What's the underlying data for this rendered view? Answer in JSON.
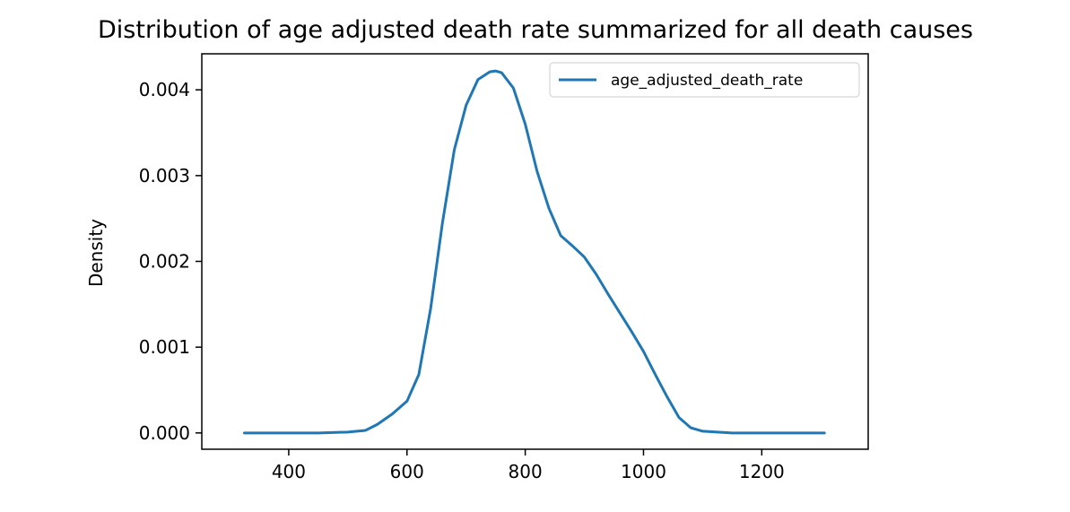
{
  "chart_data": {
    "type": "line",
    "title": "Distribution of age adjusted death rate summarized for all death causes",
    "xlabel": "",
    "ylabel": "Density",
    "xlim": [
      253,
      1380
    ],
    "ylim": [
      -0.00019,
      0.00442
    ],
    "x_ticks": [
      400,
      600,
      800,
      1000,
      1200
    ],
    "y_ticks": [
      0.0,
      0.001,
      0.002,
      0.003,
      0.004
    ],
    "x_tick_labels": [
      "400",
      "600",
      "800",
      "1000",
      "1200"
    ],
    "y_tick_labels": [
      "0.000",
      "0.001",
      "0.002",
      "0.003",
      "0.004"
    ],
    "grid": false,
    "legend": "top-right",
    "series": [
      {
        "name": "age_adjusted_death_rate",
        "color": "#1f77b4",
        "x": [
          325,
          400,
          450,
          500,
          530,
          550,
          575,
          600,
          620,
          640,
          660,
          680,
          700,
          720,
          740,
          750,
          760,
          780,
          800,
          820,
          840,
          860,
          880,
          900,
          920,
          940,
          960,
          980,
          1000,
          1020,
          1040,
          1060,
          1080,
          1100,
          1150,
          1200,
          1250,
          1306
        ],
        "y": [
          0.0,
          0.0,
          0.0,
          1e-05,
          3e-05,
          0.0001,
          0.00022,
          0.00037,
          0.00068,
          0.00145,
          0.00245,
          0.0033,
          0.00382,
          0.00412,
          0.00421,
          0.00422,
          0.0042,
          0.00402,
          0.0036,
          0.00305,
          0.00262,
          0.0023,
          0.00218,
          0.00205,
          0.00185,
          0.00162,
          0.0014,
          0.00118,
          0.00095,
          0.00068,
          0.00042,
          0.00018,
          6e-05,
          2e-05,
          0.0,
          0.0,
          0.0,
          0.0
        ]
      }
    ]
  }
}
